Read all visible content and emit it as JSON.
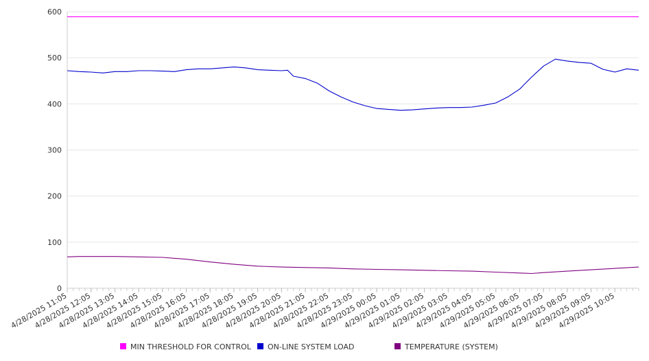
{
  "chart_data": {
    "type": "line",
    "title": "",
    "xlabel": "",
    "ylabel": "",
    "ylim": [
      0,
      600
    ],
    "y_ticks": [
      "0",
      "100",
      "200",
      "300",
      "400",
      "500",
      "600"
    ],
    "grid": true,
    "legend_placement": "bottom",
    "x_tick_labels": [
      "4/28/2025 11:05",
      "4/28/2025 12:05",
      "4/28/2025 13:05",
      "4/28/2025 14:05",
      "4/28/2025 15:05",
      "4/28/2025 16:05",
      "4/28/2025 17:05",
      "4/28/2025 18:05",
      "4/28/2025 19:05",
      "4/28/2025 20:05",
      "4/28/2025 21:05",
      "4/28/2025 22:05",
      "4/28/2025 23:05",
      "4/29/2025 00:05",
      "4/29/2025 01:05",
      "4/29/2025 02:05",
      "4/29/2025 03:05",
      "4/29/2025 04:05",
      "4/29/2025 05:05",
      "4/29/2025 06:05",
      "4/29/2025 07:05",
      "4/29/2025 08:05",
      "4/29/2025 09:05",
      "4/29/2025 10:05"
    ],
    "x_range": [
      "4/28/2025 11:05",
      "4/29/2025 11:05"
    ],
    "series": [
      {
        "name": "MIN THRESHOLD FOR CONTROL",
        "color": "#ff00ff",
        "x": [
          "4/28/2025 11:05",
          "4/29/2025 11:05"
        ],
        "values": [
          589,
          589
        ]
      },
      {
        "name": "ON-LINE SYSTEM LOAD",
        "color": "#0000cc",
        "x": [
          "4/28/2025 11:05",
          "4/28/2025 11:35",
          "4/28/2025 12:05",
          "4/28/2025 12:35",
          "4/28/2025 13:05",
          "4/28/2025 13:35",
          "4/28/2025 14:05",
          "4/28/2025 14:35",
          "4/28/2025 15:05",
          "4/28/2025 15:35",
          "4/28/2025 16:05",
          "4/28/2025 16:35",
          "4/28/2025 17:05",
          "4/28/2025 17:35",
          "4/28/2025 18:05",
          "4/28/2025 18:35",
          "4/28/2025 19:05",
          "4/28/2025 19:35",
          "4/28/2025 20:05",
          "4/28/2025 20:20",
          "4/28/2025 20:35",
          "4/28/2025 21:05",
          "4/28/2025 21:35",
          "4/28/2025 22:05",
          "4/28/2025 22:35",
          "4/28/2025 23:05",
          "4/28/2025 23:35",
          "4/29/2025 00:05",
          "4/29/2025 00:35",
          "4/29/2025 01:05",
          "4/29/2025 01:35",
          "4/29/2025 02:05",
          "4/29/2025 02:35",
          "4/29/2025 03:05",
          "4/29/2025 03:35",
          "4/29/2025 04:05",
          "4/29/2025 04:35",
          "4/29/2025 05:05",
          "4/29/2025 05:35",
          "4/29/2025 06:05",
          "4/29/2025 06:35",
          "4/29/2025 07:05",
          "4/29/2025 07:35",
          "4/29/2025 08:05",
          "4/29/2025 08:35",
          "4/29/2025 09:05",
          "4/29/2025 09:35",
          "4/29/2025 10:05",
          "4/29/2025 10:35",
          "4/29/2025 11:05"
        ],
        "values": [
          472,
          470,
          469,
          467,
          470,
          470,
          472,
          472,
          471,
          470,
          474,
          476,
          476,
          478,
          480,
          478,
          474,
          473,
          472,
          473,
          460,
          455,
          445,
          428,
          415,
          404,
          396,
          390,
          388,
          386,
          387,
          389,
          391,
          392,
          392,
          393,
          397,
          402,
          415,
          432,
          458,
          482,
          497,
          493,
          490,
          488,
          475,
          469,
          476,
          473
        ]
      },
      {
        "name": "TEMPERATURE (SYSTEM)",
        "color": "#800080",
        "x": [
          "4/28/2025 11:05",
          "4/28/2025 11:35",
          "4/28/2025 12:05",
          "4/28/2025 13:05",
          "4/28/2025 14:05",
          "4/28/2025 15:05",
          "4/28/2025 16:05",
          "4/28/2025 17:05",
          "4/28/2025 18:05",
          "4/28/2025 19:05",
          "4/28/2025 20:05",
          "4/28/2025 21:05",
          "4/28/2025 22:05",
          "4/28/2025 23:05",
          "4/29/2025 00:05",
          "4/29/2025 01:05",
          "4/29/2025 02:05",
          "4/29/2025 03:05",
          "4/29/2025 04:05",
          "4/29/2025 05:05",
          "4/29/2025 06:05",
          "4/29/2025 06:35",
          "4/29/2025 07:05",
          "4/29/2025 08:05",
          "4/29/2025 09:05",
          "4/29/2025 10:05",
          "4/29/2025 11:05"
        ],
        "values": [
          68,
          69,
          69,
          69,
          68,
          67,
          63,
          57,
          52,
          48,
          46,
          45,
          44,
          42,
          41,
          40,
          39,
          38,
          37,
          35,
          33,
          32,
          34,
          37,
          40,
          43,
          46
        ]
      }
    ]
  }
}
